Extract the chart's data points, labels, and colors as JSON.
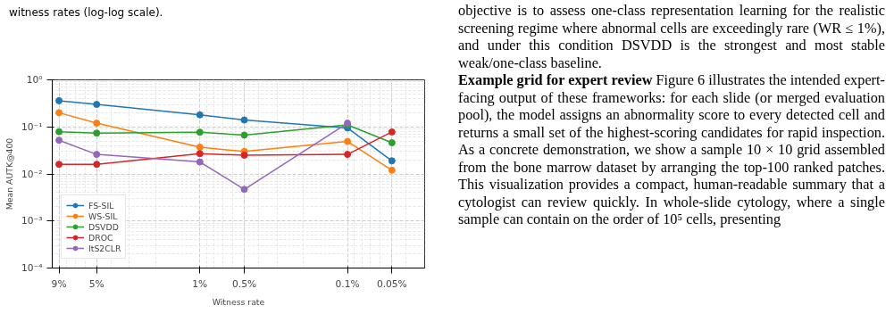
{
  "chart_data": {
    "type": "line",
    "xlabel": "Witness rate",
    "ylabel": "Mean AUTK@400",
    "x": [
      9,
      5,
      1,
      0.5,
      0.1,
      0.05
    ],
    "series": [
      {
        "name": "FS-SIL",
        "color": "#1f77b4",
        "values": [
          0.36,
          0.3,
          0.18,
          0.14,
          0.095,
          0.019
        ]
      },
      {
        "name": "WS-SIL",
        "color": "#ff7f0e",
        "values": [
          0.2,
          0.12,
          0.037,
          0.03,
          0.049,
          0.012
        ]
      },
      {
        "name": "DSVDD",
        "color": "#2ca02c",
        "values": [
          0.079,
          0.074,
          0.077,
          0.067,
          0.11,
          0.046
        ]
      },
      {
        "name": "DROC",
        "color": "#d62728",
        "values": [
          0.016,
          0.016,
          0.027,
          0.025,
          0.026,
          0.078
        ]
      },
      {
        "name": "ItS2CLR",
        "color": "#9467bd",
        "values": [
          0.052,
          0.026,
          0.018,
          0.0047,
          0.12,
          null
        ]
      }
    ],
    "log": "xy",
    "grid": true,
    "legend": "bottom left",
    "marker": "circle",
    "line_style": "solid",
    "xlim": [
      10,
      0.03
    ],
    "ylim": [
      0.0001,
      1
    ],
    "xticks": [
      {
        "value": 9,
        "label": "9%"
      },
      {
        "value": 5,
        "label": "5%"
      },
      {
        "value": 1,
        "label": "1%"
      },
      {
        "value": 0.5,
        "label": "0.5%"
      },
      {
        "value": 0.1,
        "label": "0.1%"
      },
      {
        "value": 0.05,
        "label": "0.05%"
      }
    ],
    "yticks": [
      {
        "value": 0.0001,
        "label": "10⁻⁴"
      },
      {
        "value": 0.001,
        "label": "10⁻³"
      },
      {
        "value": 0.01,
        "label": "10⁻²"
      },
      {
        "value": 0.1,
        "label": "10⁻¹"
      },
      {
        "value": 1,
        "label": "10⁰"
      }
    ],
    "annotations": [
      "witness rates (log-log scale).",
      "objective is to assess one-class representation learning for the realistic screening regime where abnormal cells are exceedingly rare (WR ≤ 1%), and under this condition DSVDD is the strongest and most stable weak/one-class baseline.",
      "Example grid for expert review",
      "Figure 6 illustrates the intended expert-facing output of these frameworks: for each slide (or merged evaluation pool), the model assigns an abnormality score to every detected cell and returns a small set of the highest-scoring candidates for rapid inspection. As a concrete demonstration, we show a sample 10 × 10 grid assembled from the bone marrow dataset by arranging the top-100 ranked patches. This visualization provides a compact, human-readable summary that a cytologist can review quickly. In whole-slide cytology, where a single sample can contain on the order of 10⁵ cells, presenting"
    ]
  }
}
